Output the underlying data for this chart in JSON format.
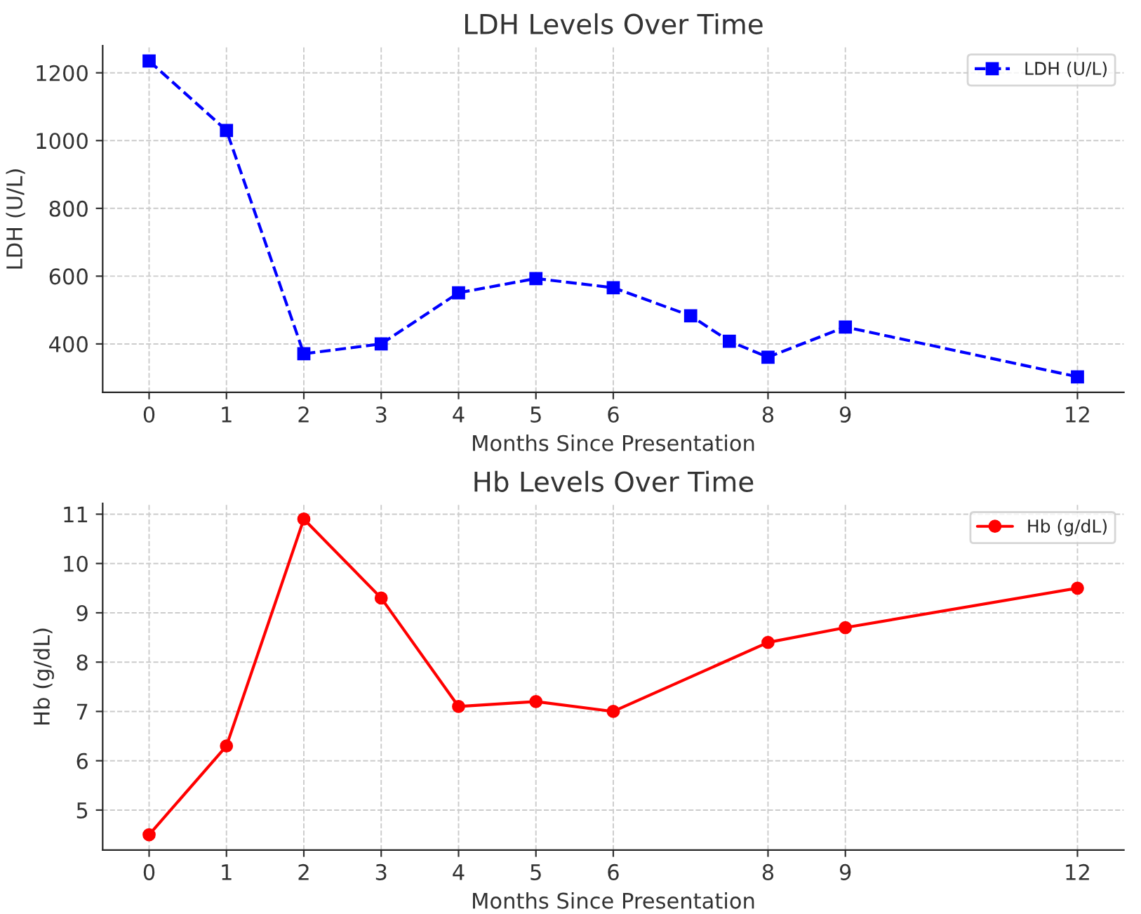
{
  "chart_data": [
    {
      "type": "line",
      "title": "LDH Levels Over Time",
      "xlabel": "Months Since Presentation",
      "ylabel": "LDH (U/L)",
      "x": [
        0,
        1,
        2,
        3,
        4,
        5,
        6,
        7,
        7.5,
        8,
        9,
        12
      ],
      "series": [
        {
          "name": "LDH (U/L)",
          "color": "#0000ff",
          "values": [
            1235,
            1030,
            371,
            400,
            551,
            593,
            566,
            483,
            408,
            361,
            450,
            303
          ],
          "marker": "square",
          "line_style": "dashed"
        }
      ],
      "xlim": [
        -0.6,
        12.6
      ],
      "ylim": [
        257,
        1280
      ],
      "xticks": [
        0,
        1,
        2,
        3,
        4,
        5,
        6,
        8,
        9,
        12
      ],
      "yticks": [
        400,
        600,
        800,
        1000,
        1200
      ],
      "grid": true,
      "legend": "top right"
    },
    {
      "type": "line",
      "title": "Hb Levels Over Time",
      "xlabel": "Months Since Presentation",
      "ylabel": "Hb (g/dL)",
      "x": [
        0,
        1,
        2,
        3,
        4,
        5,
        6,
        8,
        9,
        12
      ],
      "series": [
        {
          "name": "Hb (g/dL)",
          "color": "#ff0000",
          "values": [
            4.5,
            6.3,
            10.9,
            9.3,
            7.1,
            7.2,
            7.0,
            8.4,
            8.7,
            9.5
          ],
          "marker": "circle",
          "line_style": "solid"
        }
      ],
      "xlim": [
        -0.6,
        12.6
      ],
      "ylim": [
        4.19,
        11.22
      ],
      "xticks": [
        0,
        1,
        2,
        3,
        4,
        5,
        6,
        8,
        9,
        12
      ],
      "yticks": [
        5,
        6,
        7,
        8,
        9,
        10,
        11
      ],
      "grid": true,
      "legend": "top right"
    }
  ]
}
